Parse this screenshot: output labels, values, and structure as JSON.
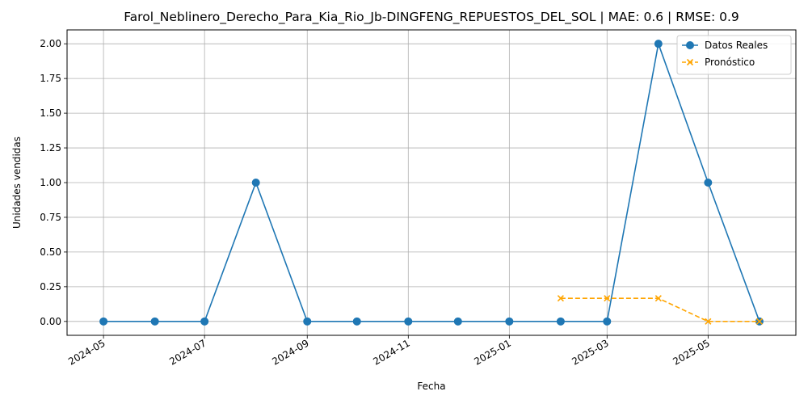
{
  "chart_data": {
    "type": "line",
    "title": "Farol_Neblinero_Derecho_Para_Kia_Rio_Jb-DINGFENG_REPUESTOS_DEL_SOL | MAE: 0.6 | RMSE: 0.9",
    "xlabel": "Fecha",
    "ylabel": "Unidades vendidas",
    "ylim": [
      -0.1,
      2.1
    ],
    "xlim": [
      "2024-04-09",
      "2025-06-23"
    ],
    "grid": true,
    "legend_position": "top-right",
    "x_ticks": [
      "2024-05",
      "2024-07",
      "2024-09",
      "2024-11",
      "2025-01",
      "2025-03",
      "2025-05"
    ],
    "x_tick_dates": [
      "2024-05-01",
      "2024-07-01",
      "2024-09-01",
      "2024-11-01",
      "2025-01-01",
      "2025-03-01",
      "2025-05-01"
    ],
    "y_ticks": [
      "0.00",
      "0.25",
      "0.50",
      "0.75",
      "1.00",
      "1.25",
      "1.50",
      "1.75",
      "2.00"
    ],
    "y_tick_values": [
      0,
      0.25,
      0.5,
      0.75,
      1.0,
      1.25,
      1.5,
      1.75,
      2.0
    ],
    "series": [
      {
        "name": "Datos Reales",
        "color": "#1f77b4",
        "marker": "circle",
        "line_style": "solid",
        "x": [
          "2024-05-01",
          "2024-06-01",
          "2024-07-01",
          "2024-08-01",
          "2024-09-01",
          "2024-10-01",
          "2024-11-01",
          "2024-12-01",
          "2025-01-01",
          "2025-02-01",
          "2025-03-01",
          "2025-04-01",
          "2025-05-01",
          "2025-06-01"
        ],
        "y": [
          0,
          0,
          0,
          1,
          0,
          0,
          0,
          0,
          0,
          0,
          0,
          2,
          1,
          0
        ]
      },
      {
        "name": "Pronóstico",
        "color": "#ffa500",
        "marker": "x",
        "line_style": "dashed",
        "x": [
          "2025-02-01",
          "2025-03-01",
          "2025-04-01",
          "2025-05-01",
          "2025-06-01"
        ],
        "y": [
          0.1667,
          0.1667,
          0.1667,
          0,
          0
        ]
      }
    ]
  }
}
